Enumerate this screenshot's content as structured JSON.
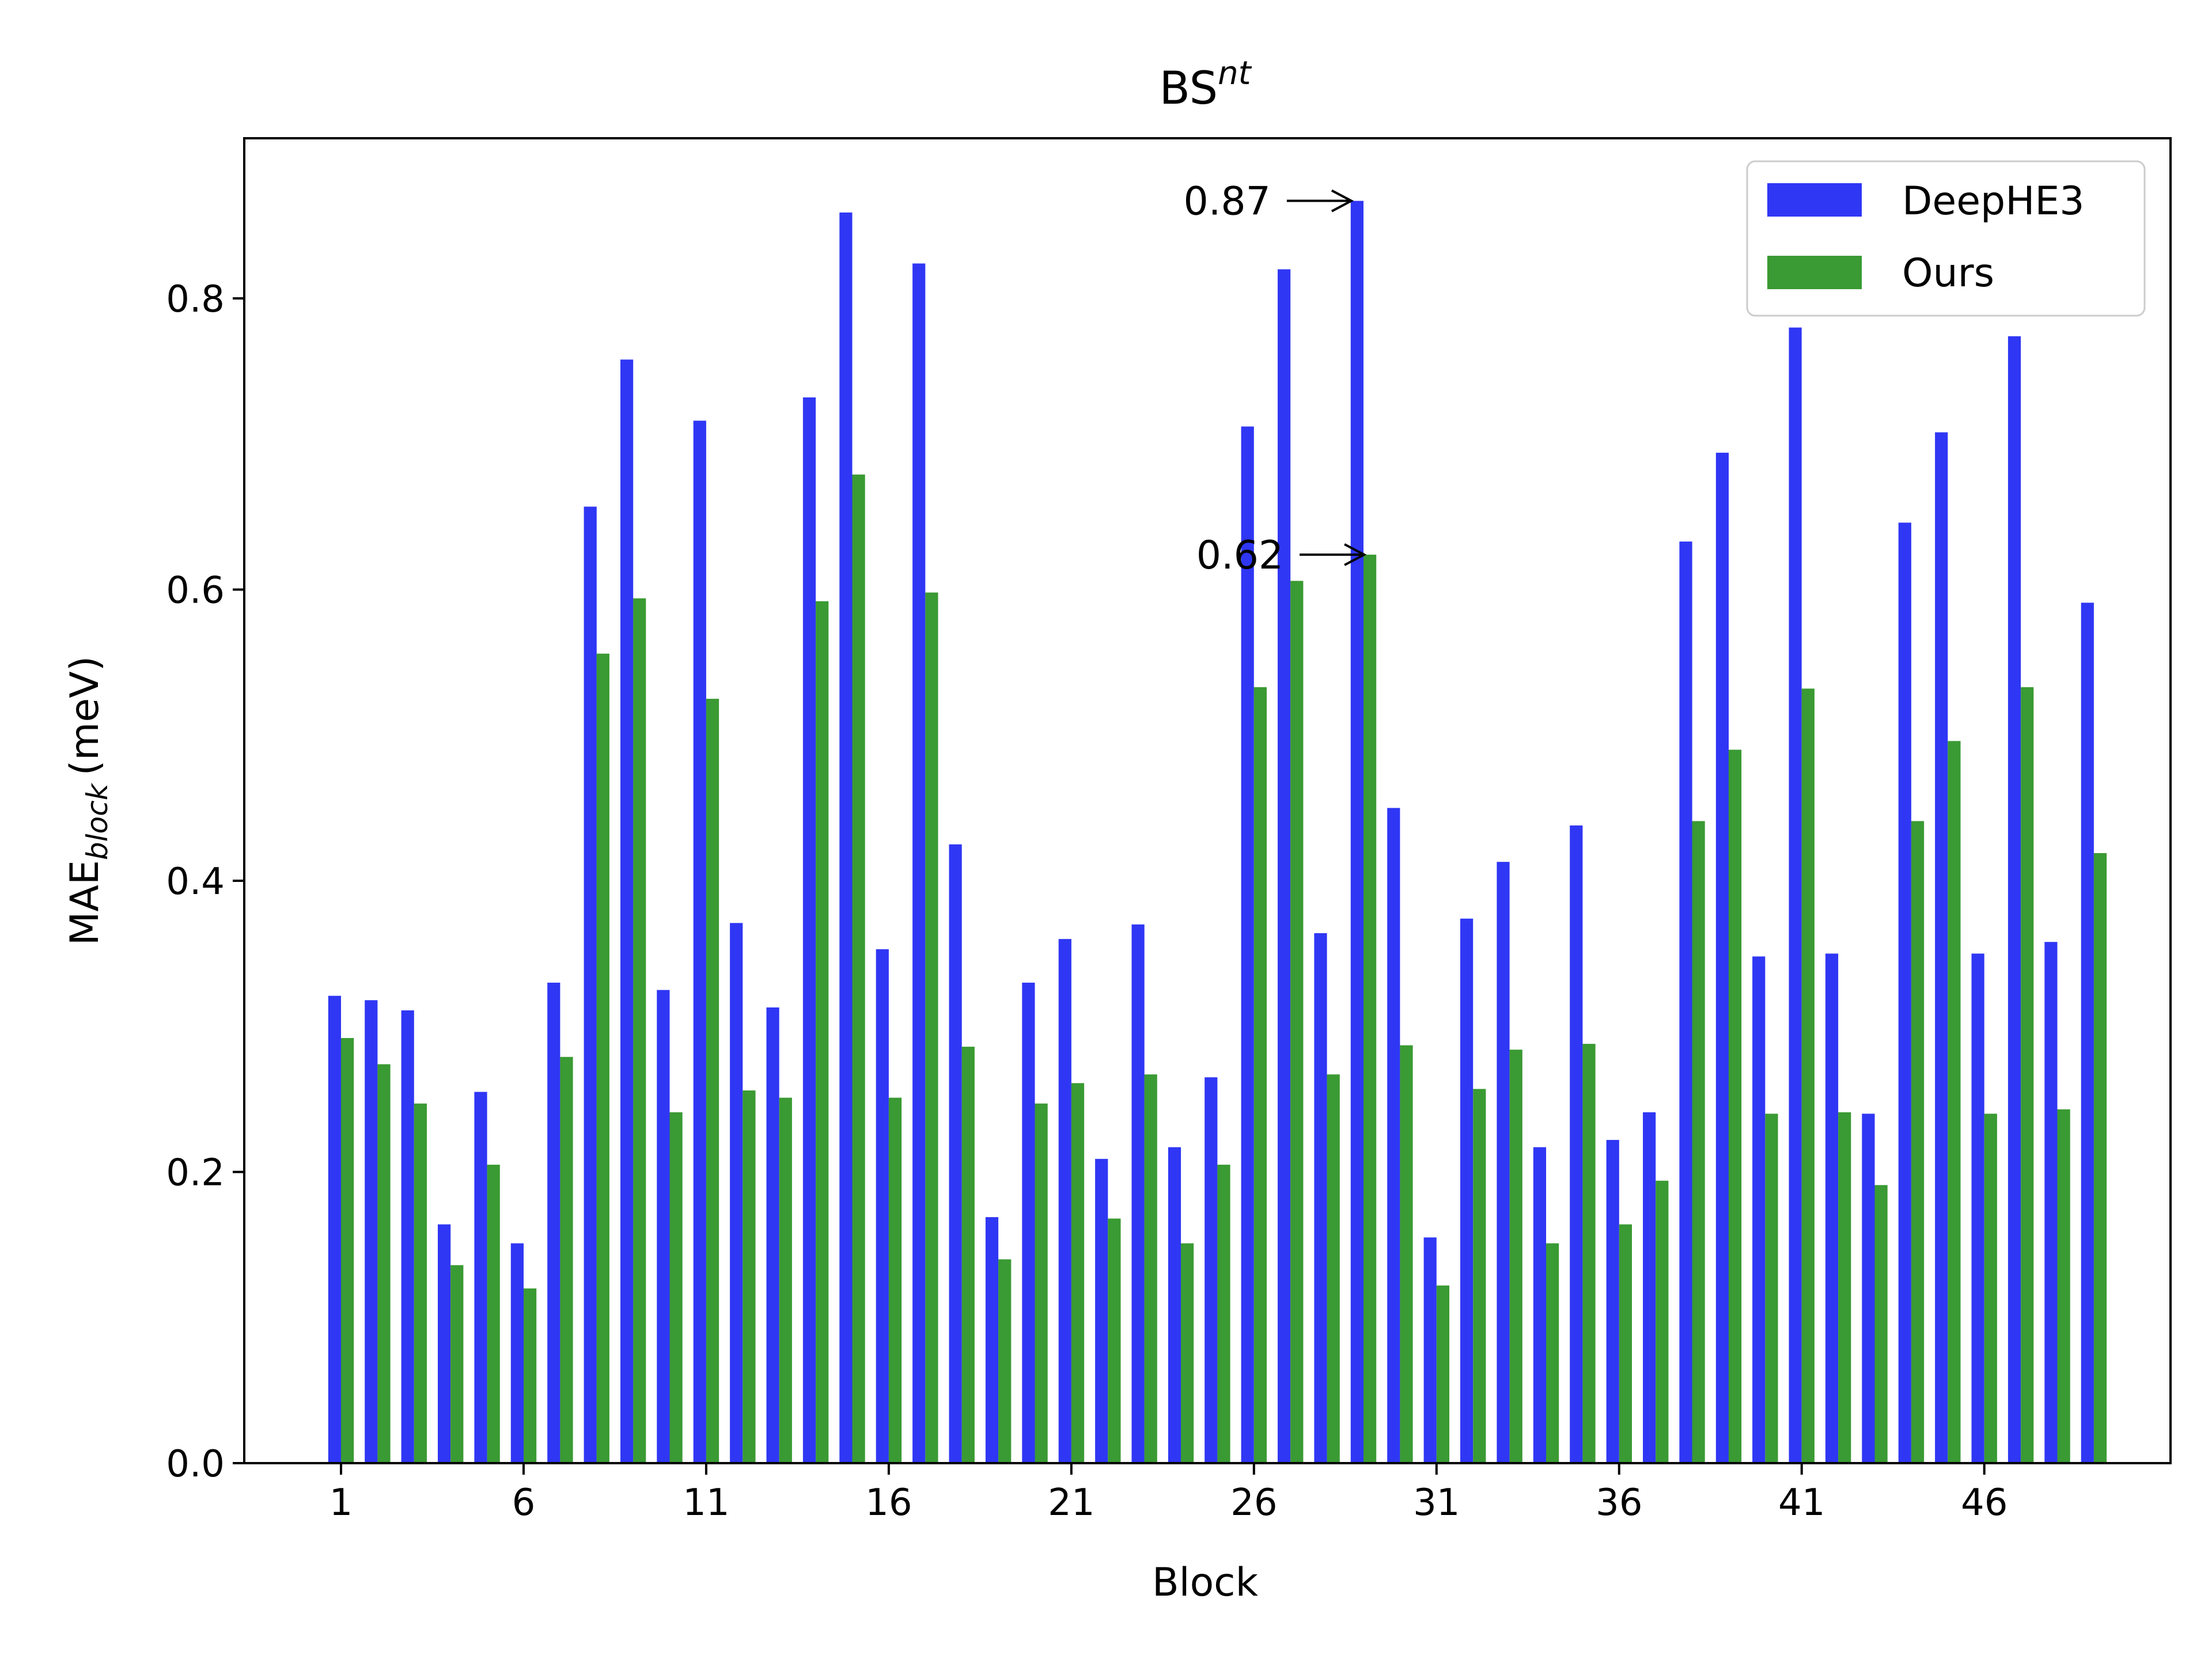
{
  "chart_data": {
    "type": "bar",
    "title": "BS",
    "title_superscript": "nt",
    "xlabel": "Block",
    "ylabel": "MAE",
    "ylabel_subscript": "block",
    "ylabel_unit": "(meV)",
    "ylim": [
      0,
      0.91
    ],
    "yticks": [
      "0.0",
      "0.2",
      "0.4",
      "0.6",
      "0.8"
    ],
    "ytick_values": [
      0,
      0.2,
      0.4,
      0.6,
      0.8
    ],
    "xtick_labels": [
      "1",
      "6",
      "11",
      "16",
      "21",
      "26",
      "31",
      "36",
      "41",
      "46"
    ],
    "xtick_values": [
      1,
      6,
      11,
      16,
      21,
      26,
      31,
      36,
      41,
      46
    ],
    "xlim": [
      -1.65,
      51.1
    ],
    "grid": false,
    "legend_position": "top-right",
    "categories": [
      1,
      2,
      3,
      4,
      5,
      6,
      7,
      8,
      9,
      10,
      11,
      12,
      13,
      14,
      15,
      16,
      17,
      18,
      19,
      20,
      21,
      22,
      23,
      24,
      25,
      26,
      27,
      28,
      29,
      30,
      31,
      32,
      33,
      34,
      35,
      36,
      37,
      38,
      39,
      40,
      41,
      42,
      43,
      44,
      45,
      46,
      47,
      48,
      49
    ],
    "series": [
      {
        "name": "DeepHE3",
        "color": "#2f37f4",
        "values": [
          0.321,
          0.318,
          0.311,
          0.164,
          0.255,
          0.151,
          0.33,
          0.657,
          0.758,
          0.325,
          0.716,
          0.371,
          0.313,
          0.732,
          0.859,
          0.353,
          0.824,
          0.425,
          0.169,
          0.33,
          0.36,
          0.209,
          0.37,
          0.217,
          0.265,
          0.712,
          0.82,
          0.364,
          0.867,
          0.45,
          0.155,
          0.374,
          0.413,
          0.217,
          0.438,
          0.222,
          0.241,
          0.633,
          0.694,
          0.348,
          0.78,
          0.35,
          0.24,
          0.646,
          0.708,
          0.35,
          0.774,
          0.358,
          0.591
        ]
      },
      {
        "name": "Ours",
        "color": "#3a9a33",
        "values": [
          0.292,
          0.274,
          0.247,
          0.136,
          0.205,
          0.12,
          0.279,
          0.556,
          0.594,
          0.241,
          0.525,
          0.256,
          0.251,
          0.592,
          0.679,
          0.251,
          0.598,
          0.286,
          0.14,
          0.247,
          0.261,
          0.168,
          0.267,
          0.151,
          0.205,
          0.533,
          0.606,
          0.267,
          0.624,
          0.287,
          0.122,
          0.257,
          0.284,
          0.151,
          0.288,
          0.164,
          0.194,
          0.441,
          0.49,
          0.24,
          0.532,
          0.241,
          0.191,
          0.441,
          0.496,
          0.24,
          0.533,
          0.243,
          0.419
        ]
      }
    ],
    "annotations": [
      {
        "text": "0.87",
        "block": 29,
        "series": "DeepHE3",
        "value": 0.867
      },
      {
        "text": "0.62",
        "block": 29,
        "series": "Ours",
        "value": 0.624
      }
    ]
  }
}
